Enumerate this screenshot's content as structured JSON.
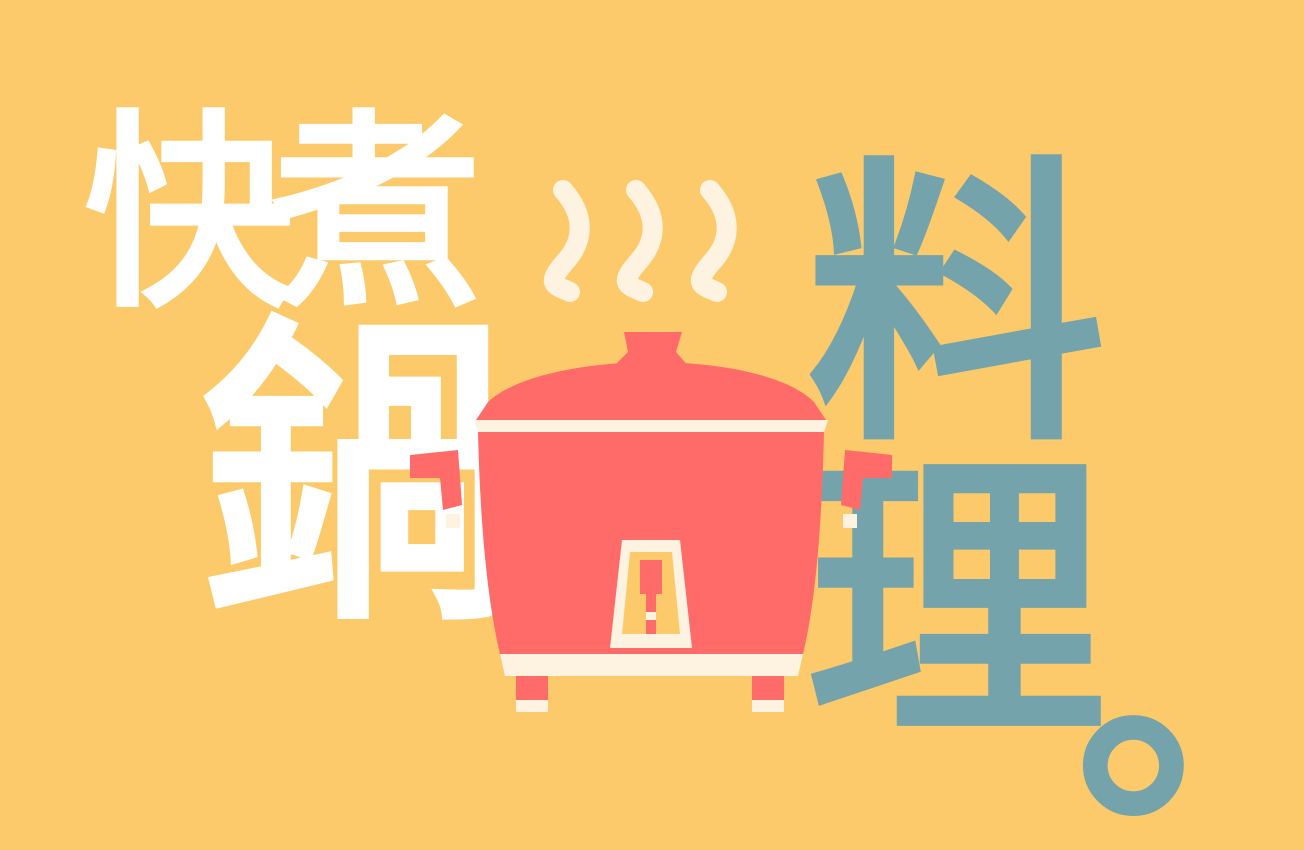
{
  "title": {
    "char_1": "快",
    "char_2": "煮",
    "char_3": "鍋",
    "char_4": "料",
    "char_5": "理",
    "punctuation": "。"
  },
  "colors": {
    "background": "#fdca6b",
    "title_white": "#ffffff",
    "title_teal": "#75a3ab",
    "cooker_red": "#ff6b68",
    "cooker_cream": "#fdf3e0",
    "steam": "#fdf3e0"
  },
  "illustration": {
    "icon": "rice-cooker-icon",
    "steam_icon": "steam-wave-icon",
    "steam_count": 3
  }
}
